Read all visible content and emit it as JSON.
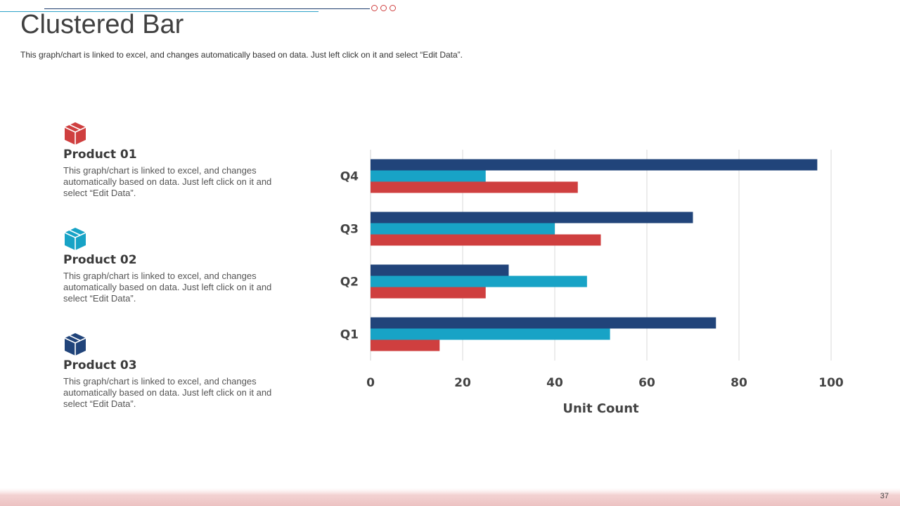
{
  "slide": {
    "title": "Clustered Bar",
    "subtitle": "This graph/chart is linked to excel, and changes automatically based on data. Just left click on it and select “Edit Data”.",
    "page_number": "37"
  },
  "products": [
    {
      "title": "Product  01",
      "description": "This graph/chart is linked to excel,  and changes automatically based on data. Just left click on it and select “Edit Data”.",
      "icon": "box-icon",
      "color": "#cf3f3f"
    },
    {
      "title": "Product  02",
      "description": "This graph/chart is linked to excel,  and changes automatically based on data. Just left click on it and select “Edit Data”.",
      "icon": "box-icon",
      "color": "#18a3c6"
    },
    {
      "title": "Product  03",
      "description": "This graph/chart is linked to excel,  and changes automatically based on data. Just left click on it and select “Edit Data”.",
      "icon": "box-icon",
      "color": "#21447a"
    }
  ],
  "chart_data": {
    "type": "bar",
    "orientation": "horizontal",
    "categories": [
      "Q1",
      "Q2",
      "Q3",
      "Q4"
    ],
    "series": [
      {
        "values": [
          15,
          25,
          50,
          45
        ],
        "color": "#cf3f3f"
      },
      {
        "values": [
          52,
          47,
          40,
          25
        ],
        "color": "#18a3c6"
      },
      {
        "values": [
          75,
          30,
          70,
          97
        ],
        "color": "#21447a"
      }
    ],
    "xlabel": "Unit Count",
    "xlim": [
      0,
      100
    ],
    "xticks": [
      0,
      20,
      40,
      60,
      80,
      100
    ],
    "grid": true,
    "legend": "none"
  }
}
